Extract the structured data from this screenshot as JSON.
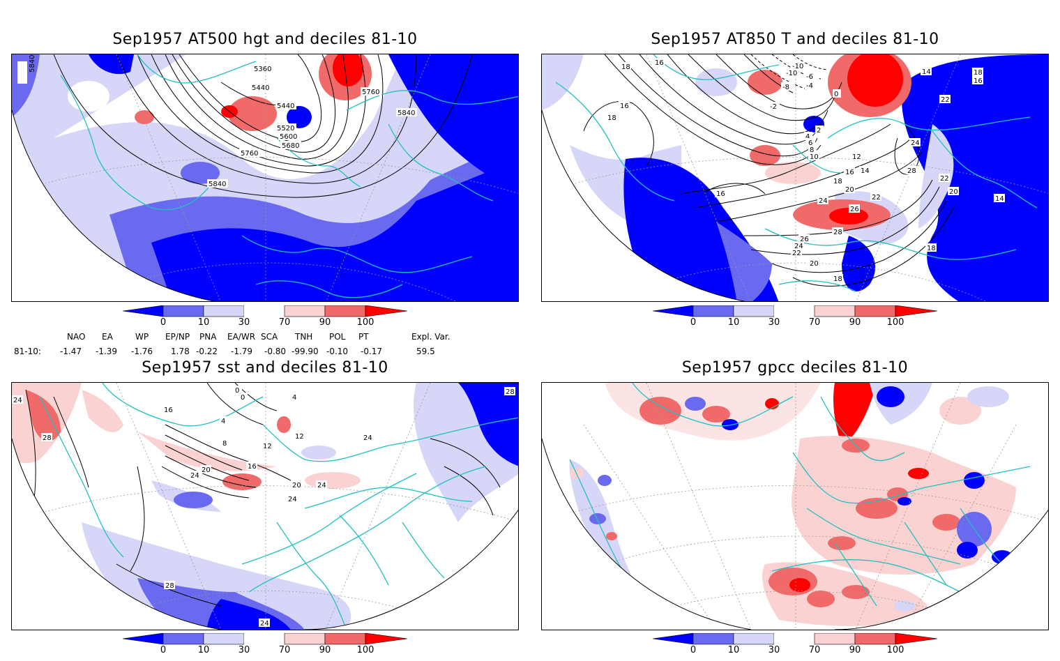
{
  "panels": {
    "p1": {
      "title": "Sep1957 AT500 hgt and deciles 81-10",
      "contour_labels": [
        "5840",
        "5360",
        "5440",
        "5440",
        "5760",
        "5520",
        "5600",
        "5680",
        "5760",
        "5840",
        "5840"
      ]
    },
    "p2": {
      "title": "Sep1957 AT850 T and deciles 81-10",
      "contour_labels": [
        "18",
        "16",
        "16",
        "18",
        "-10",
        "-6",
        "-4",
        "-8",
        "-10",
        "-2",
        "0",
        "2",
        "4",
        "6",
        "8",
        "10",
        "12",
        "14",
        "16",
        "18",
        "20",
        "22",
        "24",
        "26",
        "28",
        "26",
        "24",
        "22",
        "20",
        "18",
        "16",
        "14",
        "22",
        "24",
        "28",
        "20",
        "14",
        "18",
        "16",
        "18",
        "22"
      ]
    },
    "p3": {
      "title": "Sep1957 sst and deciles 81-10",
      "contour_labels": [
        "24",
        "28",
        "16",
        "0",
        "0",
        "4",
        "8",
        "12",
        "16",
        "20",
        "24",
        "24",
        "20",
        "24",
        "28",
        "24",
        "28",
        "4",
        "12",
        "24"
      ]
    },
    "p4": {
      "title": "Sep1957 gpcc deciles 81-10"
    }
  },
  "colorbar": {
    "labels": [
      "0",
      "10",
      "30",
      "70",
      "90",
      "100"
    ],
    "colors": [
      "#0000ff",
      "#6a6af0",
      "#d6d6f8",
      "#ffffff",
      "#fad2d2",
      "#f06a6a",
      "#ff0000"
    ]
  },
  "teleconnections": {
    "headers": [
      "NAO",
      "EA",
      "WP",
      "EP/NP",
      "PNA",
      "EA/WR",
      "SCA",
      "TNH",
      "POL",
      "PT",
      "Expl. Var."
    ],
    "row_label": "81-10:",
    "values": [
      "-1.47",
      "-1.39",
      "-1.76",
      "1.78",
      "-0.22",
      "-1.79",
      "-0.80",
      "-99.90",
      "-0.10",
      "-0.17",
      "59.5"
    ]
  },
  "map_colors": {
    "coast": "#20c0c0",
    "grid": "#999999",
    "contour": "#000000"
  }
}
